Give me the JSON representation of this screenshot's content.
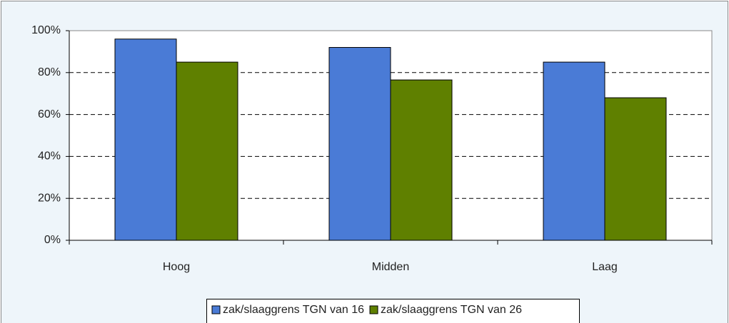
{
  "chart_data": {
    "type": "bar",
    "categories": [
      "Hoog",
      "Midden",
      "Laag"
    ],
    "series": [
      {
        "name": "zak/slaaggrens TGN van 16",
        "color": "#4a7bd6",
        "values": [
          96,
          92,
          85
        ]
      },
      {
        "name": "zak/slaaggrens TGN van 26",
        "color": "#5f8000",
        "values": [
          85,
          76.5,
          68
        ]
      }
    ],
    "ylim": [
      0,
      100
    ],
    "yticks": [
      {
        "value": 0,
        "label": "0%"
      },
      {
        "value": 20,
        "label": "20%"
      },
      {
        "value": 40,
        "label": "40%"
      },
      {
        "value": 60,
        "label": "60%"
      },
      {
        "value": 80,
        "label": "80%"
      },
      {
        "value": 100,
        "label": "100%"
      }
    ],
    "grid": true,
    "legend": "bottom"
  }
}
